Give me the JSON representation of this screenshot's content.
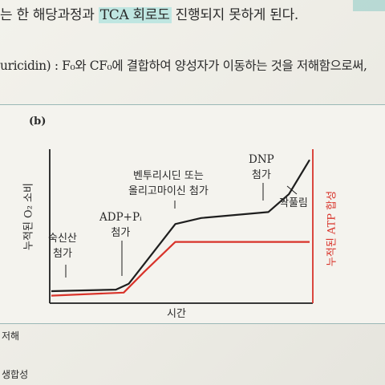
{
  "text": {
    "line1_pre": "는 한 해당과정과 ",
    "line1_hl": "TCA 회로도",
    "line1_post": " 진행되지 못하게 된다.",
    "line2": "uricidin) : F₀와 CF₀에 결합하여 양성자가 이동하는 것을 저해함으로써,",
    "panel_label": "(b)",
    "y_left": "누적된 O₂ 소비",
    "y_right": "누적된 ATP 합성",
    "x_label": "시간",
    "ann_succinate": [
      "숙신산",
      "첨가"
    ],
    "ann_adp": [
      "ADP+Pᵢ",
      "첨가"
    ],
    "ann_venturicidin": [
      "벤투리시딘 또는",
      "올리고마이신 첨가"
    ],
    "ann_dnp": [
      "DNP",
      "첨가"
    ],
    "ann_uncoupling": "짝풀림",
    "footer1": "저해",
    "footer2": "생합성"
  },
  "colors": {
    "o2_line": "#1e1e1e",
    "atp_line": "#d8332a",
    "highlight": "#bfe6e1"
  },
  "chart_data": {
    "type": "line",
    "title": "",
    "xlabel": "시간",
    "ylabel": "누적된 O₂ 소비",
    "ylabel_right": "누적된 ATP 합성",
    "series": [
      {
        "name": "누적된 O₂ 소비",
        "x": [
          0,
          0.25,
          0.3,
          0.48,
          0.58,
          0.84,
          0.92,
          1.0
        ],
        "values": [
          0.07,
          0.08,
          0.12,
          0.52,
          0.56,
          0.6,
          0.72,
          0.95
        ]
      },
      {
        "name": "누적된 ATP 합성",
        "x": [
          0,
          0.28,
          0.36,
          0.48,
          1.0
        ],
        "values": [
          0.04,
          0.06,
          0.2,
          0.4,
          0.4
        ]
      }
    ],
    "grid": false
  }
}
